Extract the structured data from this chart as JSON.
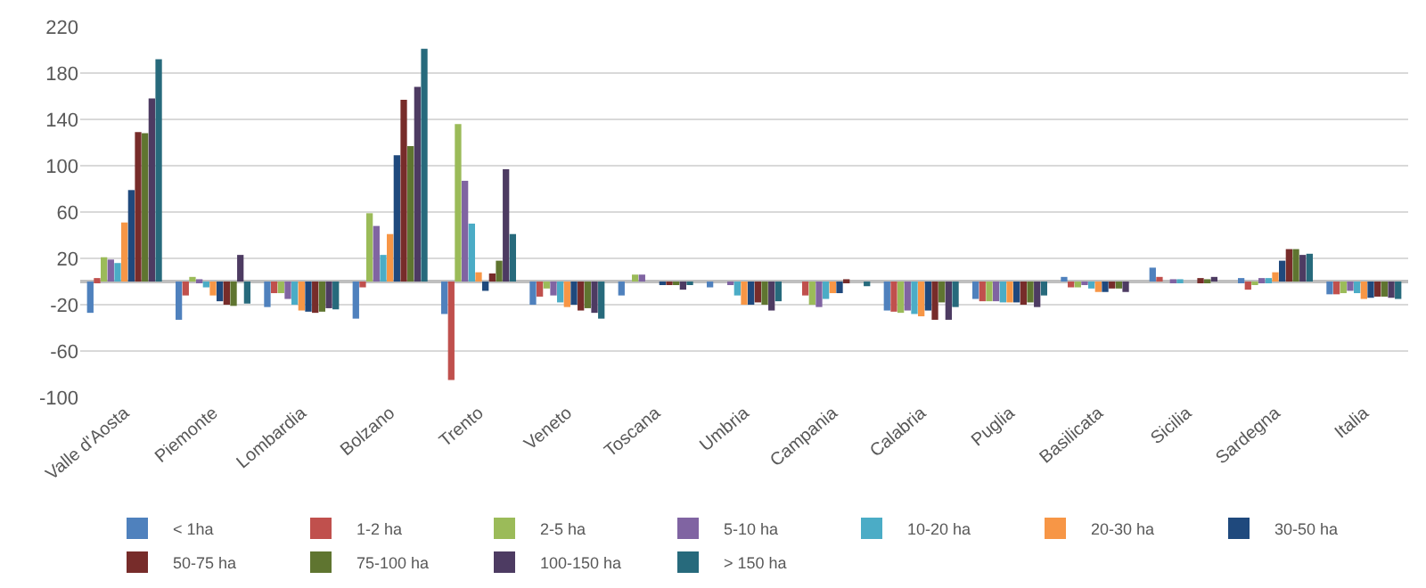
{
  "chart_data": {
    "type": "bar",
    "categories": [
      "Valle d'Aosta",
      "Piemonte",
      "Lombardia",
      "Bolzano",
      "Trento",
      "Veneto",
      "Toscana",
      "Umbria",
      "Campania",
      "Calabria",
      "Puglia",
      "Basilicata",
      "Sicilia",
      "Sardegna",
      "Italia"
    ],
    "series": [
      {
        "name": "< 1ha",
        "color": "#4f81bd",
        "values": [
          -27,
          -33,
          -22,
          -32,
          -28,
          -20,
          -12,
          -5,
          0,
          -25,
          -15,
          4,
          12,
          3,
          -11
        ]
      },
      {
        "name": "1-2 ha",
        "color": "#c0504d",
        "values": [
          3,
          -12,
          -10,
          -5,
          -85,
          -13,
          0,
          0,
          -12,
          -26,
          -17,
          -5,
          4,
          -7,
          -11
        ]
      },
      {
        "name": "2-5 ha",
        "color": "#9bbb59",
        "values": [
          21,
          4,
          -10,
          59,
          136,
          -6,
          6,
          0,
          -20,
          -27,
          -17,
          -5,
          0,
          -3,
          -10
        ]
      },
      {
        "name": "5-10 ha",
        "color": "#8064a2",
        "values": [
          19,
          2,
          -15,
          48,
          87,
          -12,
          6,
          -3,
          -22,
          -25,
          -17,
          -3,
          2,
          3,
          -8
        ]
      },
      {
        "name": "10-20 ha",
        "color": "#4bacc6",
        "values": [
          16,
          -5,
          -20,
          23,
          50,
          -18,
          0,
          -12,
          -15,
          -28,
          -18,
          -6,
          2,
          3,
          -10
        ]
      },
      {
        "name": "20-30 ha",
        "color": "#f79646",
        "values": [
          51,
          -12,
          -25,
          41,
          8,
          -22,
          0,
          -20,
          -10,
          -30,
          -18,
          -9,
          0,
          8,
          -15
        ]
      },
      {
        "name": "30-50 ha",
        "color": "#1f497d",
        "values": [
          79,
          -17,
          -26,
          109,
          -8,
          -20,
          -2,
          -20,
          -10,
          -25,
          -18,
          -9,
          0,
          18,
          -14
        ]
      },
      {
        "name": "50-75 ha",
        "color": "#772c2a",
        "values": [
          129,
          -20,
          -27,
          157,
          7,
          -25,
          -2,
          -18,
          2,
          -33,
          -20,
          -6,
          3,
          28,
          -13
        ]
      },
      {
        "name": "75-100 ha",
        "color": "#5f7530",
        "values": [
          128,
          -21,
          -26,
          117,
          18,
          -23,
          -3,
          -20,
          0,
          -18,
          -18,
          -6,
          2,
          28,
          -13
        ]
      },
      {
        "name": "100-150 ha",
        "color": "#4d3b62",
        "values": [
          158,
          23,
          -23,
          168,
          97,
          -27,
          -7,
          -25,
          0,
          -33,
          -22,
          -9,
          4,
          23,
          -14
        ]
      },
      {
        "name": "> 150 ha",
        "color": "#276a7c",
        "values": [
          192,
          -19,
          -24,
          201,
          41,
          -32,
          -3,
          -17,
          -4,
          -22,
          -12,
          0,
          0,
          24,
          -15
        ]
      }
    ],
    "ylim": [
      -100,
      220
    ],
    "yticks": [
      -100,
      -60,
      -20,
      20,
      60,
      100,
      140,
      180,
      220
    ],
    "grid": "y",
    "legend": "bottom"
  }
}
